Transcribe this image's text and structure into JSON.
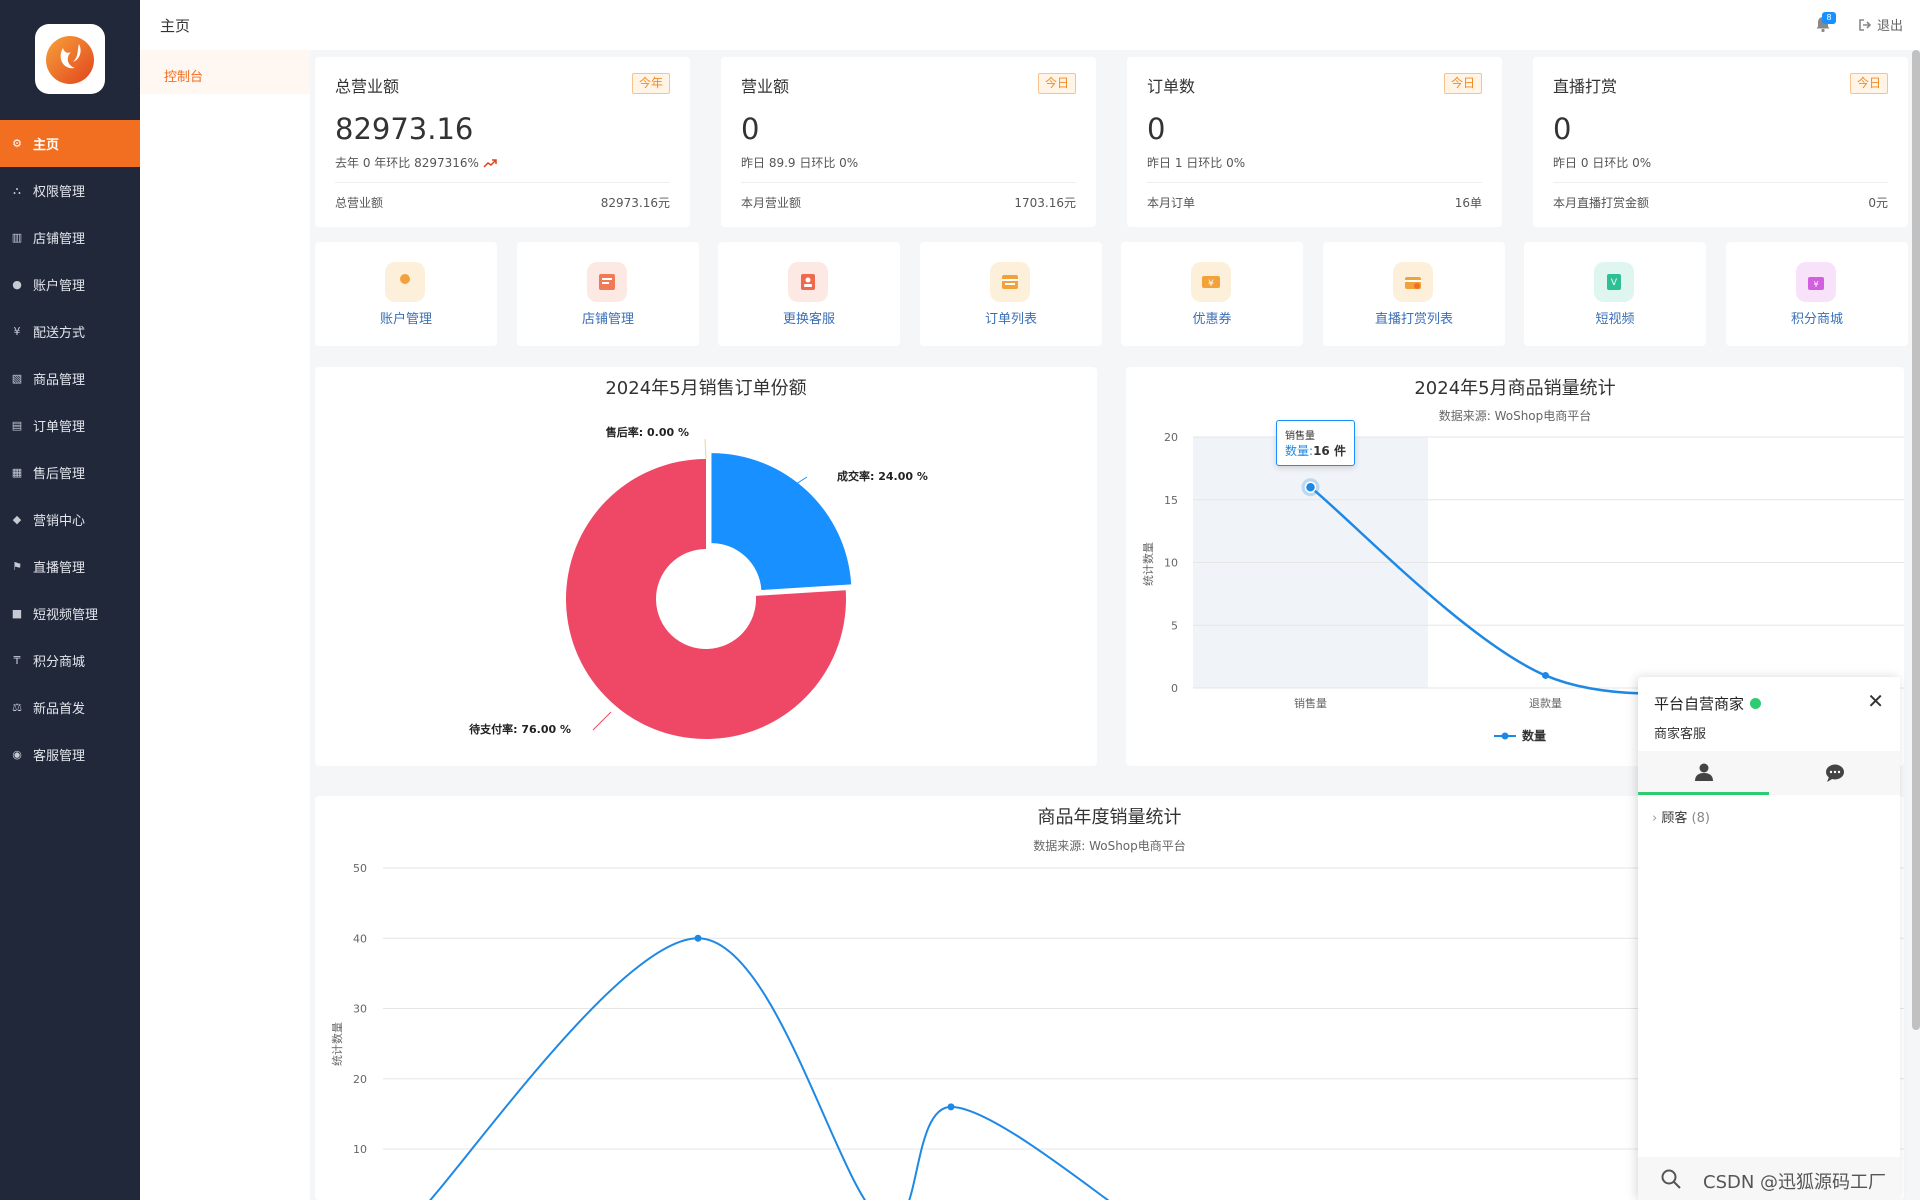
{
  "sidebar": {
    "items": [
      {
        "label": "主页",
        "icon": "gear-icon",
        "active": true
      },
      {
        "label": "权限管理",
        "icon": "sitemap-icon"
      },
      {
        "label": "店铺管理",
        "icon": "map-icon"
      },
      {
        "label": "账户管理",
        "icon": "users-icon"
      },
      {
        "label": "配送方式",
        "icon": "yen-icon"
      },
      {
        "label": "商品管理",
        "icon": "image-icon"
      },
      {
        "label": "订单管理",
        "icon": "keyboard-icon"
      },
      {
        "label": "售后管理",
        "icon": "bank-icon"
      },
      {
        "label": "营销中心",
        "icon": "tag-icon"
      },
      {
        "label": "直播管理",
        "icon": "flag-icon"
      },
      {
        "label": "短视频管理",
        "icon": "video-icon"
      },
      {
        "label": "积分商城",
        "icon": "coin-icon"
      },
      {
        "label": "新品首发",
        "icon": "scale-icon"
      },
      {
        "label": "客服管理",
        "icon": "chat-icon"
      }
    ]
  },
  "subnav": {
    "active_label": "控制台"
  },
  "header": {
    "title": "主页",
    "notification_count": "8",
    "logout_label": "退出"
  },
  "stats": [
    {
      "title": "总营业额",
      "tag": "今年",
      "value": "82973.16",
      "sub": "去年 0 年环比 8297316%",
      "foot_label": "总营业额",
      "foot_value": "82973.16元"
    },
    {
      "title": "营业额",
      "tag": "今日",
      "value": "0",
      "sub": "昨日 89.9 日环比 0%",
      "foot_label": "本月营业额",
      "foot_value": "1703.16元"
    },
    {
      "title": "订单数",
      "tag": "今日",
      "value": "0",
      "sub": "昨日 1 日环比 0%",
      "foot_label": "本月订单",
      "foot_value": "16单"
    },
    {
      "title": "直播打赏",
      "tag": "今日",
      "value": "0",
      "sub": "昨日 0 日环比 0%",
      "foot_label": "本月直播打赏金额",
      "foot_value": "0元"
    }
  ],
  "quick_links": [
    {
      "label": "账户管理",
      "icon": "account-icon",
      "bg": "#fdf0da",
      "color": "#f3a23b"
    },
    {
      "label": "店铺管理",
      "icon": "shop-icon",
      "bg": "#fde9e3",
      "color": "#f07a56"
    },
    {
      "label": "更换客服",
      "icon": "service-icon",
      "bg": "#fde9e3",
      "color": "#ef6a4d"
    },
    {
      "label": "订单列表",
      "icon": "order-icon",
      "bg": "#fdf0da",
      "color": "#f3a23b"
    },
    {
      "label": "优惠券",
      "icon": "coupon-icon",
      "bg": "#fdf0da",
      "color": "#f3a23b"
    },
    {
      "label": "直播打赏列表",
      "icon": "gift-icon",
      "bg": "#fdf0da",
      "color": "#f3a23b"
    },
    {
      "label": "短视频",
      "icon": "video-icon",
      "bg": "#dff5ef",
      "color": "#2fbf94"
    },
    {
      "label": "积分商城",
      "icon": "mall-icon",
      "bg": "#f8e2fa",
      "color": "#d45ee0"
    }
  ],
  "chart_data": [
    {
      "type": "pie",
      "title": "2024年5月销售订单份额",
      "slices": [
        {
          "label": "成交率",
          "value": 24.0,
          "display": "成交率: 24.00 %",
          "color": "#1890ff"
        },
        {
          "label": "待支付率",
          "value": 76.0,
          "display": "待支付率: 76.00 %",
          "color": "#ee4866"
        },
        {
          "label": "售后率",
          "value": 0.0,
          "display": "售后率: 0.00 %",
          "color": "#f5d67b"
        }
      ]
    },
    {
      "type": "line",
      "title": "2024年5月商品销量统计",
      "subtitle": "数据来源: WoShop电商平台",
      "ylabel": "统计数量",
      "categories": [
        "销售量",
        "退款量",
        ""
      ],
      "series": [
        {
          "name": "数量",
          "values": [
            16,
            1,
            0
          ],
          "color": "#1e88e5"
        }
      ],
      "ylim": [
        0,
        20
      ],
      "yticks": [
        "0",
        "5",
        "10",
        "15",
        "20"
      ],
      "tooltip": {
        "title": "销售量",
        "series": "数量",
        "value": "16 件"
      }
    },
    {
      "type": "line",
      "title": "商品年度销量统计",
      "subtitle": "数据来源: WoShop电商平台",
      "ylabel": "统计数量",
      "ylim": [
        0,
        50
      ],
      "yticks": [
        "10",
        "20",
        "30",
        "40",
        "50"
      ],
      "series": [
        {
          "values": [
            0,
            40,
            0,
            16,
            0
          ],
          "color": "#1e88e5"
        }
      ]
    }
  ],
  "chat": {
    "name": "平台自营商家",
    "subtitle": "商家客服",
    "group_label": "顾客",
    "group_count": "(8)"
  },
  "watermark": "CSDN @迅狐源码工厂"
}
